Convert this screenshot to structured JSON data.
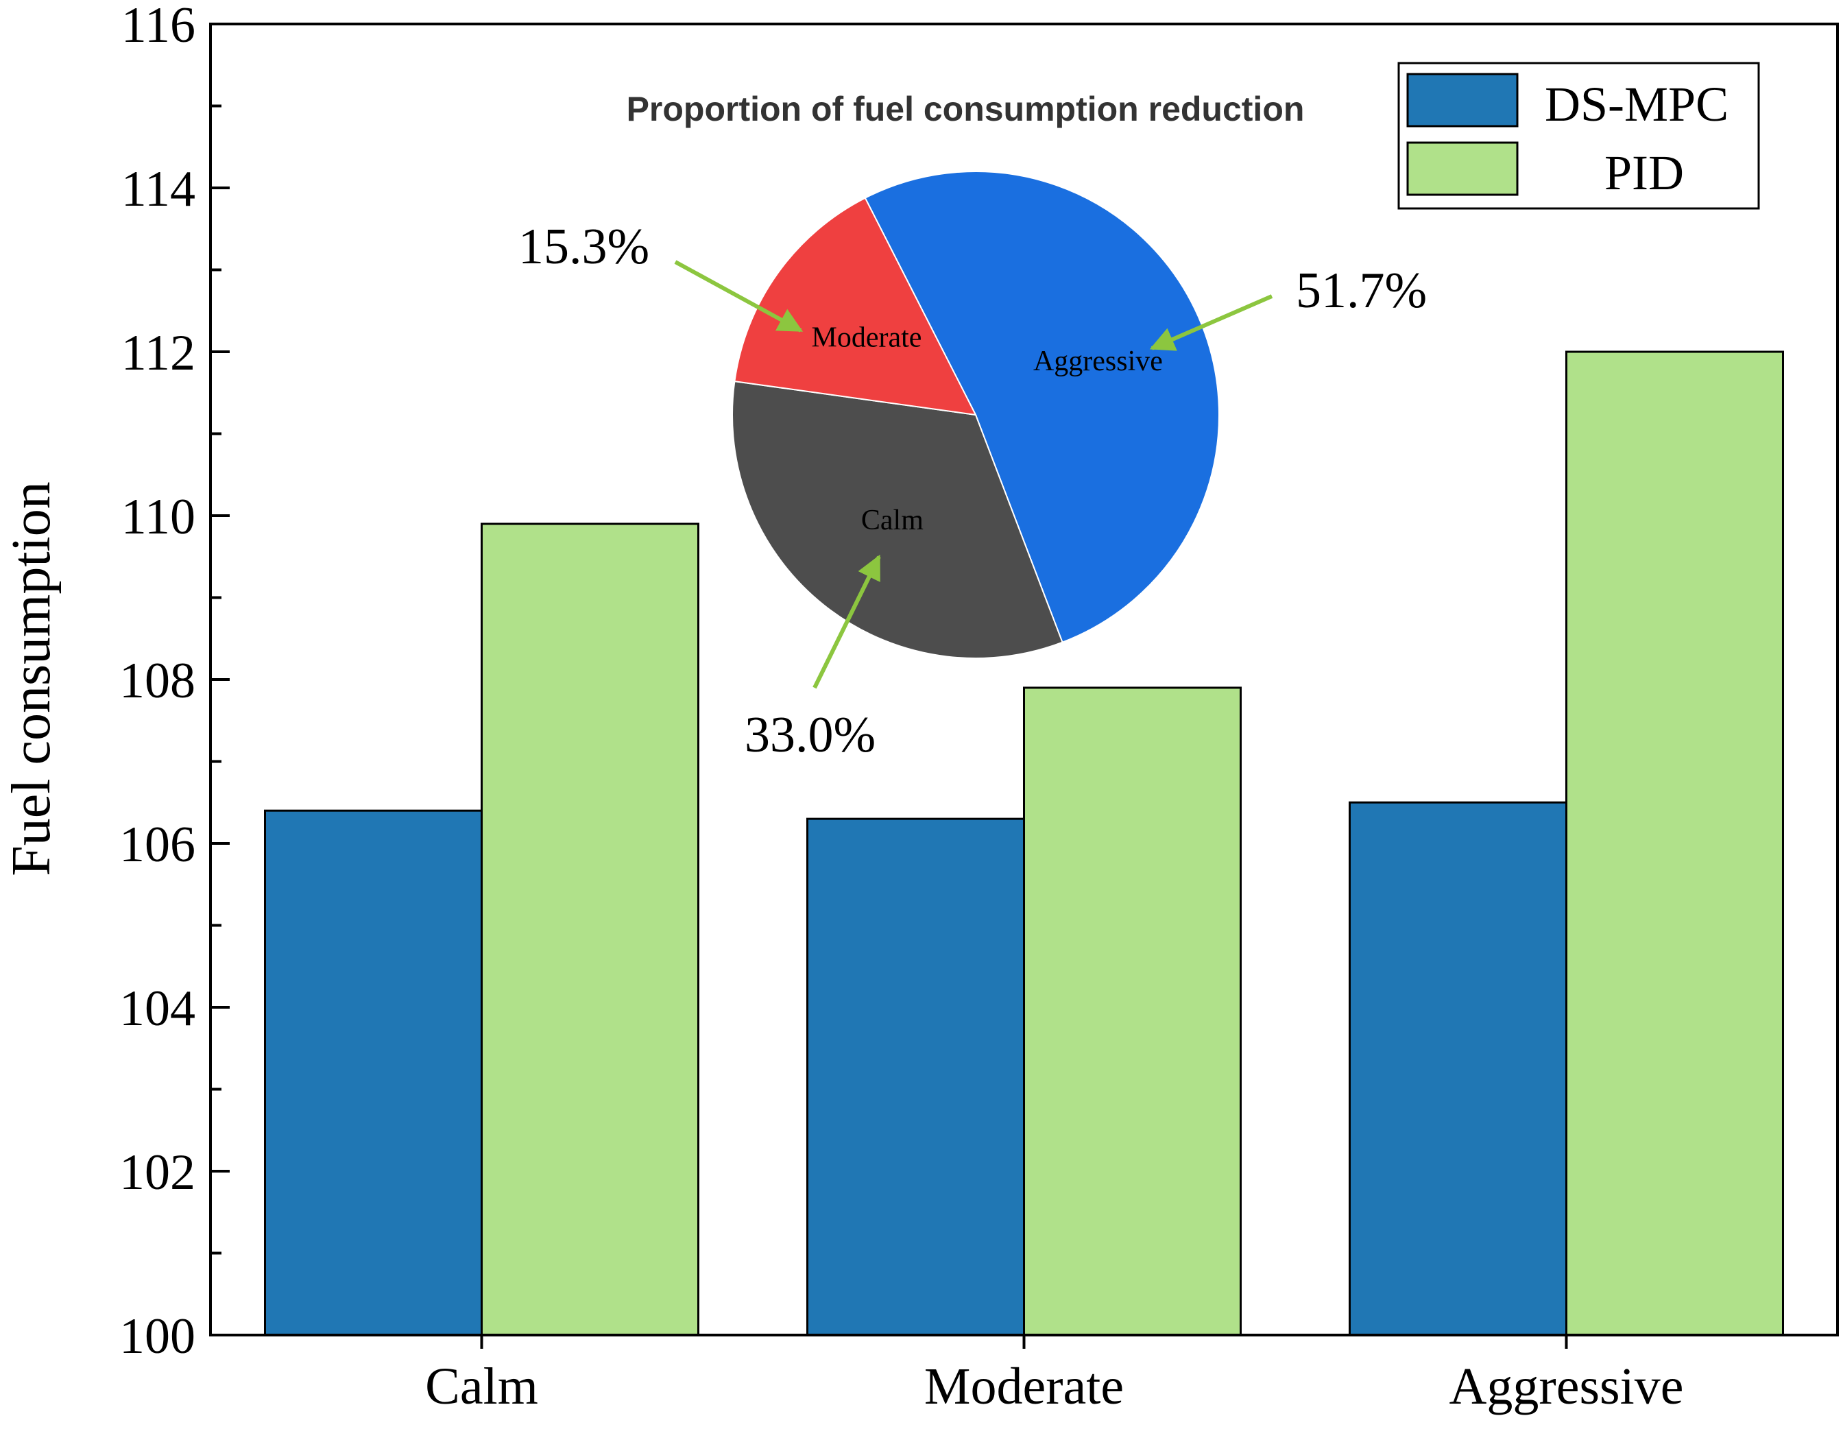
{
  "chart_data": [
    {
      "type": "bar",
      "ylabel": "Fuel consumption",
      "ylim": [
        100,
        116
      ],
      "yticks": [
        "100",
        "102",
        "104",
        "106",
        "108",
        "110",
        "112",
        "114",
        "116"
      ],
      "categories": [
        "Calm",
        "Moderate",
        "Aggressive"
      ],
      "series": [
        {
          "name": "DS-MPC",
          "color": "#2077b4",
          "values": [
            106.4,
            106.3,
            106.5
          ]
        },
        {
          "name": "PID",
          "color": "#b0e18a",
          "values": [
            109.9,
            107.9,
            112.0
          ]
        }
      ],
      "legend_position": "top-right",
      "grid": false
    },
    {
      "type": "pie",
      "title": "Proportion of fuel consumption reduction",
      "slices": [
        {
          "label": "Aggressive",
          "value": 51.7,
          "value_label": "51.7%",
          "color": "#1a6fe0"
        },
        {
          "label": "Calm",
          "value": 33.0,
          "value_label": "33.0%",
          "color": "#4d4d4d"
        },
        {
          "label": "Moderate",
          "value": 15.3,
          "value_label": "15.3%",
          "color": "#ef4040"
        }
      ],
      "annotation_arrow_color": "#8cc63f"
    }
  ]
}
